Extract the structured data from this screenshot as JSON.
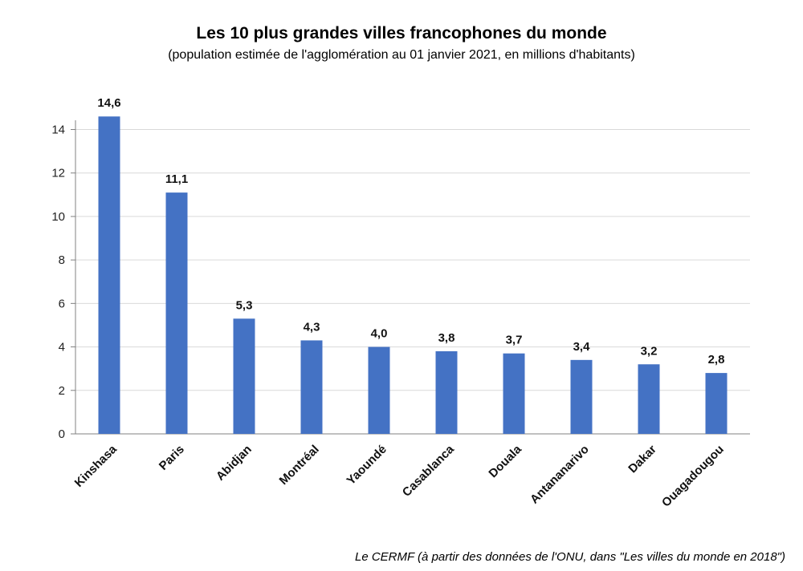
{
  "chart_data": {
    "type": "bar",
    "title": "Les 10 plus grandes villes francophones du monde",
    "subtitle": "(population estimée de l'agglomération au 01 janvier 2021, en millions d'habitants)",
    "source": "Le CERMF (à partir des données de l'ONU, dans \"Les villes du monde en 2018\")",
    "categories": [
      "Kinshasa",
      "Paris",
      "Abidjan",
      "Montréal",
      "Yaoundé",
      "Casablanca",
      "Douala",
      "Antananarivo",
      "Dakar",
      "Ouagadougou"
    ],
    "values": [
      14.6,
      11.1,
      5.3,
      4.3,
      4.0,
      3.8,
      3.7,
      3.4,
      3.2,
      2.8
    ],
    "data_labels": [
      "14,6",
      "11,1",
      "5,3",
      "4,3",
      "4,0",
      "3,8",
      "3,7",
      "3,4",
      "3,2",
      "2,8"
    ],
    "yticks": [
      0,
      2,
      4,
      6,
      8,
      10,
      12,
      14
    ],
    "ylim": [
      0,
      14.6
    ],
    "grid": true,
    "legend": "none",
    "colors": {
      "bar": "#4472C4",
      "grid": "#D9D9D9",
      "axis": "#808080"
    }
  }
}
